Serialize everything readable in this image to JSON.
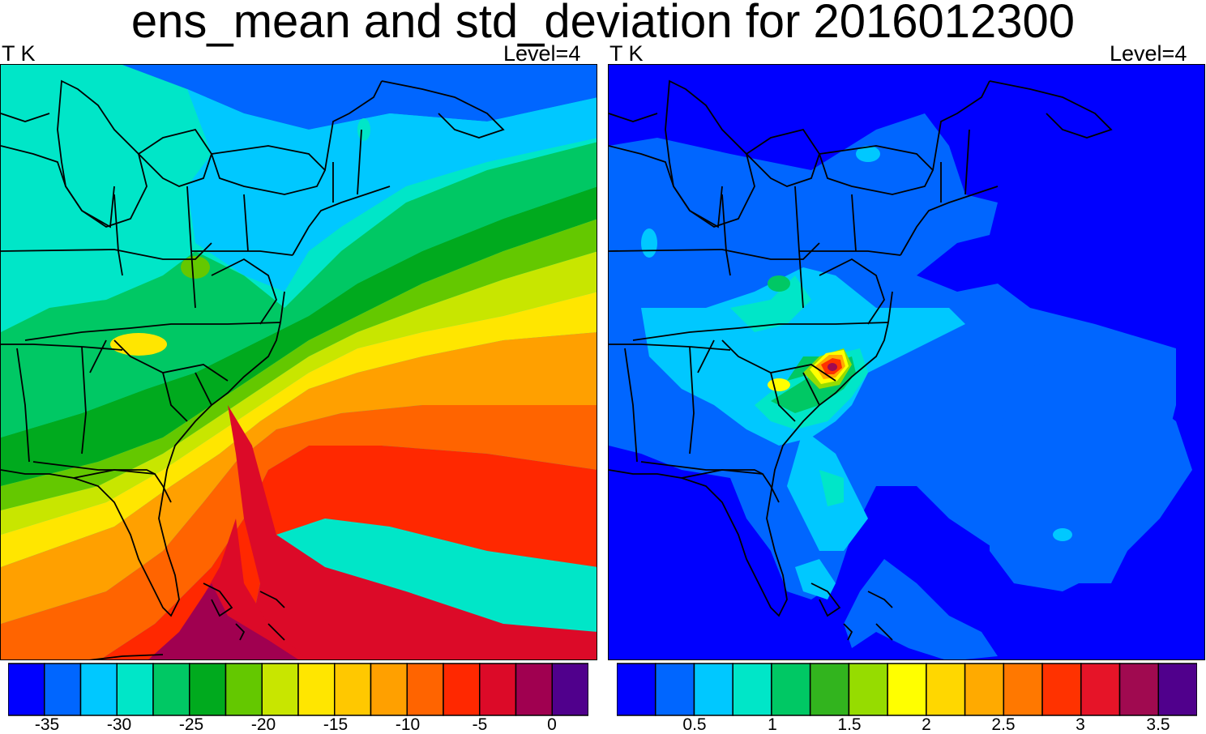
{
  "title": "ens_mean and std_deviation for 2016012300",
  "panels": [
    {
      "variable_label": "T K",
      "level_label": "Level=4",
      "colorbar": {
        "colors": [
          "#0000ff",
          "#0066ff",
          "#00c8ff",
          "#00e6c8",
          "#00c864",
          "#00aa1e",
          "#64c800",
          "#c8e600",
          "#ffe600",
          "#ffc800",
          "#ffa000",
          "#ff6400",
          "#ff2800",
          "#dc0a28",
          "#a00050",
          "#50008c"
        ],
        "tick_labels": [
          "-35",
          "-30",
          "-25",
          "-20",
          "-15",
          "-10",
          "-5",
          "0"
        ]
      }
    },
    {
      "variable_label": "T K",
      "level_label": "Level=4",
      "colorbar": {
        "colors": [
          "#0000ff",
          "#0066ff",
          "#00c8ff",
          "#00e6c8",
          "#00c864",
          "#32b41e",
          "#96dc00",
          "#ffff00",
          "#ffd700",
          "#ffaa00",
          "#ff7800",
          "#ff3200",
          "#e61428",
          "#a00a50",
          "#50008c"
        ],
        "tick_labels": [
          "0.5",
          "1",
          "1.5",
          "2",
          "2.5",
          "3",
          "3.5"
        ]
      }
    }
  ]
}
